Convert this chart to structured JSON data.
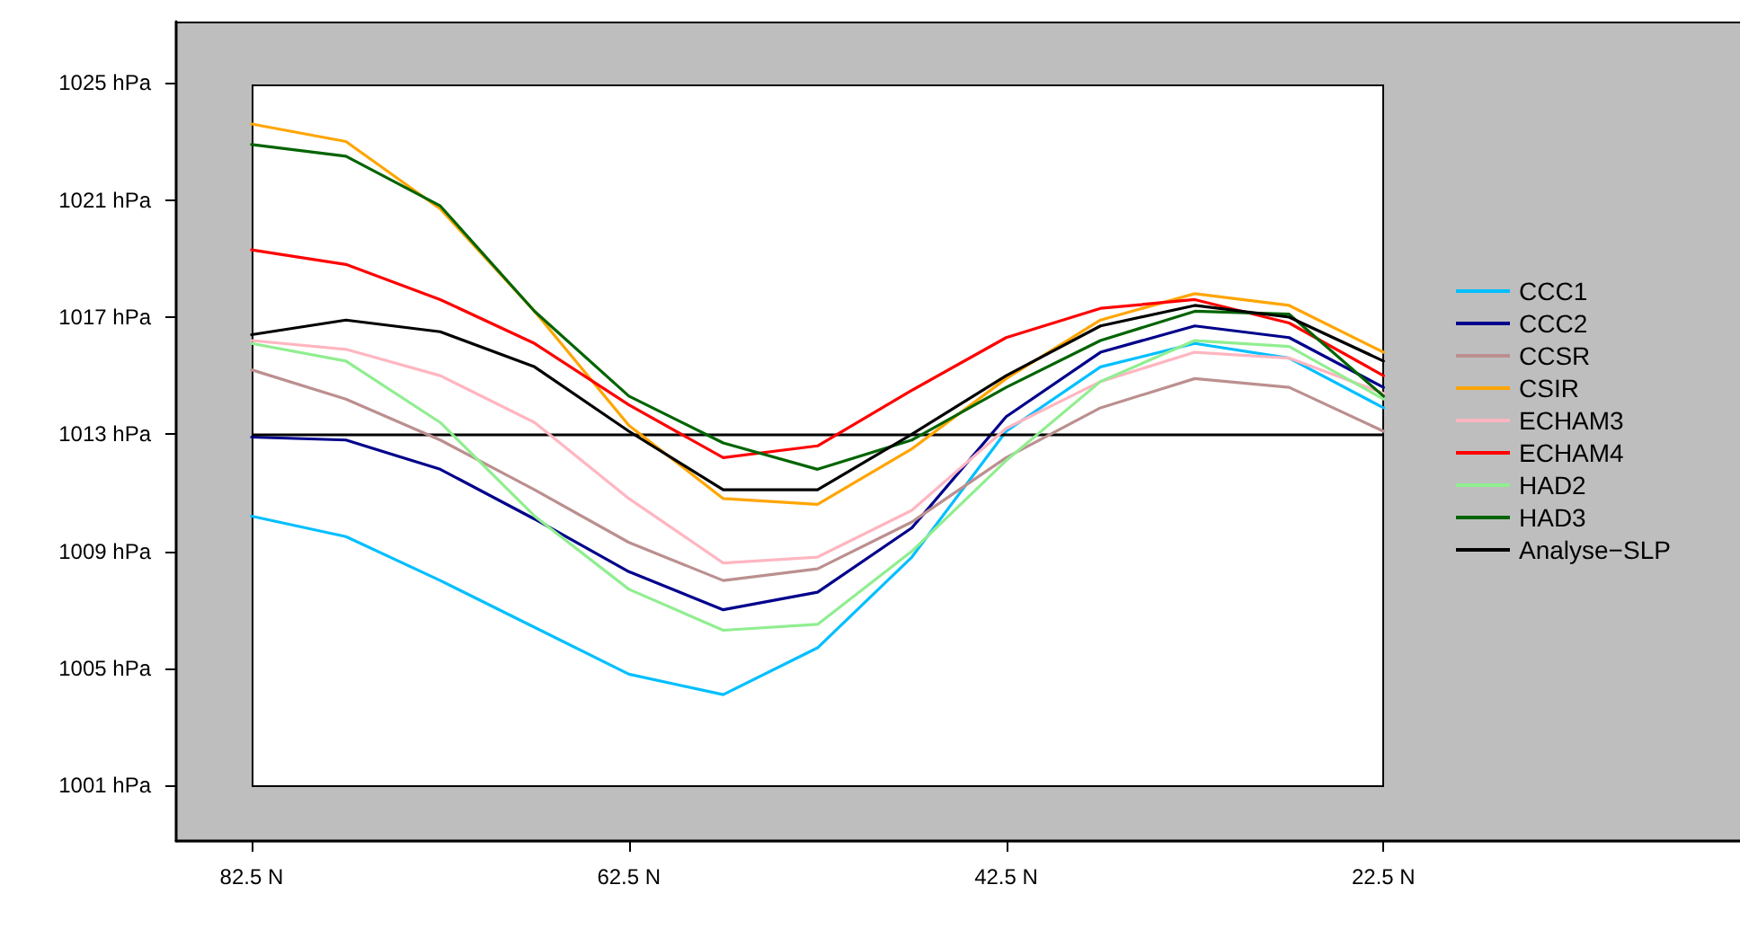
{
  "chart_data": {
    "type": "line",
    "x": [
      82.5,
      77.5,
      72.5,
      67.5,
      62.5,
      57.5,
      52.5,
      47.5,
      42.5,
      37.5,
      32.5,
      27.5,
      22.5
    ],
    "xlim": [
      86.5,
      3.6
    ],
    "xticks": [
      {
        "value": 82.5,
        "label": "82.5 N"
      },
      {
        "value": 62.5,
        "label": "62.5 N"
      },
      {
        "value": 42.5,
        "label": "42.5 N"
      },
      {
        "value": 22.5,
        "label": "22.5 N"
      }
    ],
    "ylim": [
      999.1,
      1027.1
    ],
    "yticks": [
      {
        "value": 1001,
        "label": "1001 hPa"
      },
      {
        "value": 1005,
        "label": "1005 hPa"
      },
      {
        "value": 1009,
        "label": "1009 hPa"
      },
      {
        "value": 1013,
        "label": "1013 hPa"
      },
      {
        "value": 1017,
        "label": "1017 hPa"
      },
      {
        "value": 1021,
        "label": "1021 hPa"
      },
      {
        "value": 1025,
        "label": "1025 hPa"
      }
    ],
    "series": [
      {
        "name": "CCC1",
        "color": "#00bfff",
        "values": [
          1010.2,
          1009.5,
          1008.0,
          1006.4,
          1004.8,
          1004.1,
          1005.7,
          1008.8,
          1013.1,
          1015.3,
          1016.1,
          1015.6,
          1013.9
        ]
      },
      {
        "name": "CCC2",
        "color": "#00008b",
        "values": [
          1012.9,
          1012.8,
          1011.8,
          1010.1,
          1008.3,
          1007.0,
          1007.6,
          1009.8,
          1013.6,
          1015.8,
          1016.7,
          1016.3,
          1014.6
        ]
      },
      {
        "name": "CCSR",
        "color": "#bc8f8f",
        "values": [
          1015.2,
          1014.2,
          1012.8,
          1011.1,
          1009.3,
          1008.0,
          1008.4,
          1010.0,
          1012.2,
          1013.9,
          1014.9,
          1014.6,
          1013.1
        ]
      },
      {
        "name": "CSIR",
        "color": "#ffa500",
        "values": [
          1023.6,
          1023.0,
          1020.7,
          1017.2,
          1013.3,
          1010.8,
          1010.6,
          1012.5,
          1014.9,
          1016.9,
          1017.8,
          1017.4,
          1015.8
        ]
      },
      {
        "name": "ECHAM3",
        "color": "#ffb6c1",
        "values": [
          1016.2,
          1015.9,
          1015.0,
          1013.4,
          1010.8,
          1008.6,
          1008.8,
          1010.4,
          1013.2,
          1014.8,
          1015.8,
          1015.6,
          1014.4
        ]
      },
      {
        "name": "ECHAM4",
        "color": "#ff0000",
        "values": [
          1019.3,
          1018.8,
          1017.6,
          1016.1,
          1014.0,
          1012.2,
          1012.6,
          1014.5,
          1016.3,
          1017.3,
          1017.6,
          1016.8,
          1015.0
        ]
      },
      {
        "name": "HAD2",
        "color": "#90ee90",
        "values": [
          1016.1,
          1015.5,
          1013.4,
          1010.2,
          1007.7,
          1006.3,
          1006.5,
          1009.0,
          1012.1,
          1014.8,
          1016.2,
          1016.0,
          1014.2
        ]
      },
      {
        "name": "HAD3",
        "color": "#006400",
        "values": [
          1022.9,
          1022.5,
          1020.8,
          1017.2,
          1014.3,
          1012.7,
          1011.8,
          1012.8,
          1014.6,
          1016.2,
          1017.2,
          1017.1,
          1014.3
        ]
      },
      {
        "name": "Analyse−SLP",
        "color": "#000000",
        "values": [
          1016.4,
          1016.9,
          1016.5,
          1015.3,
          1013.1,
          1011.1,
          1011.1,
          1013.0,
          1015.0,
          1016.7,
          1017.4,
          1017.0,
          1015.5
        ]
      }
    ],
    "ref_lines": [
      {
        "axis": "y",
        "value": 1013,
        "label": null,
        "color": "#000000"
      }
    ],
    "legend": "right",
    "grid": false,
    "marker": "none",
    "line_style": "solid"
  }
}
